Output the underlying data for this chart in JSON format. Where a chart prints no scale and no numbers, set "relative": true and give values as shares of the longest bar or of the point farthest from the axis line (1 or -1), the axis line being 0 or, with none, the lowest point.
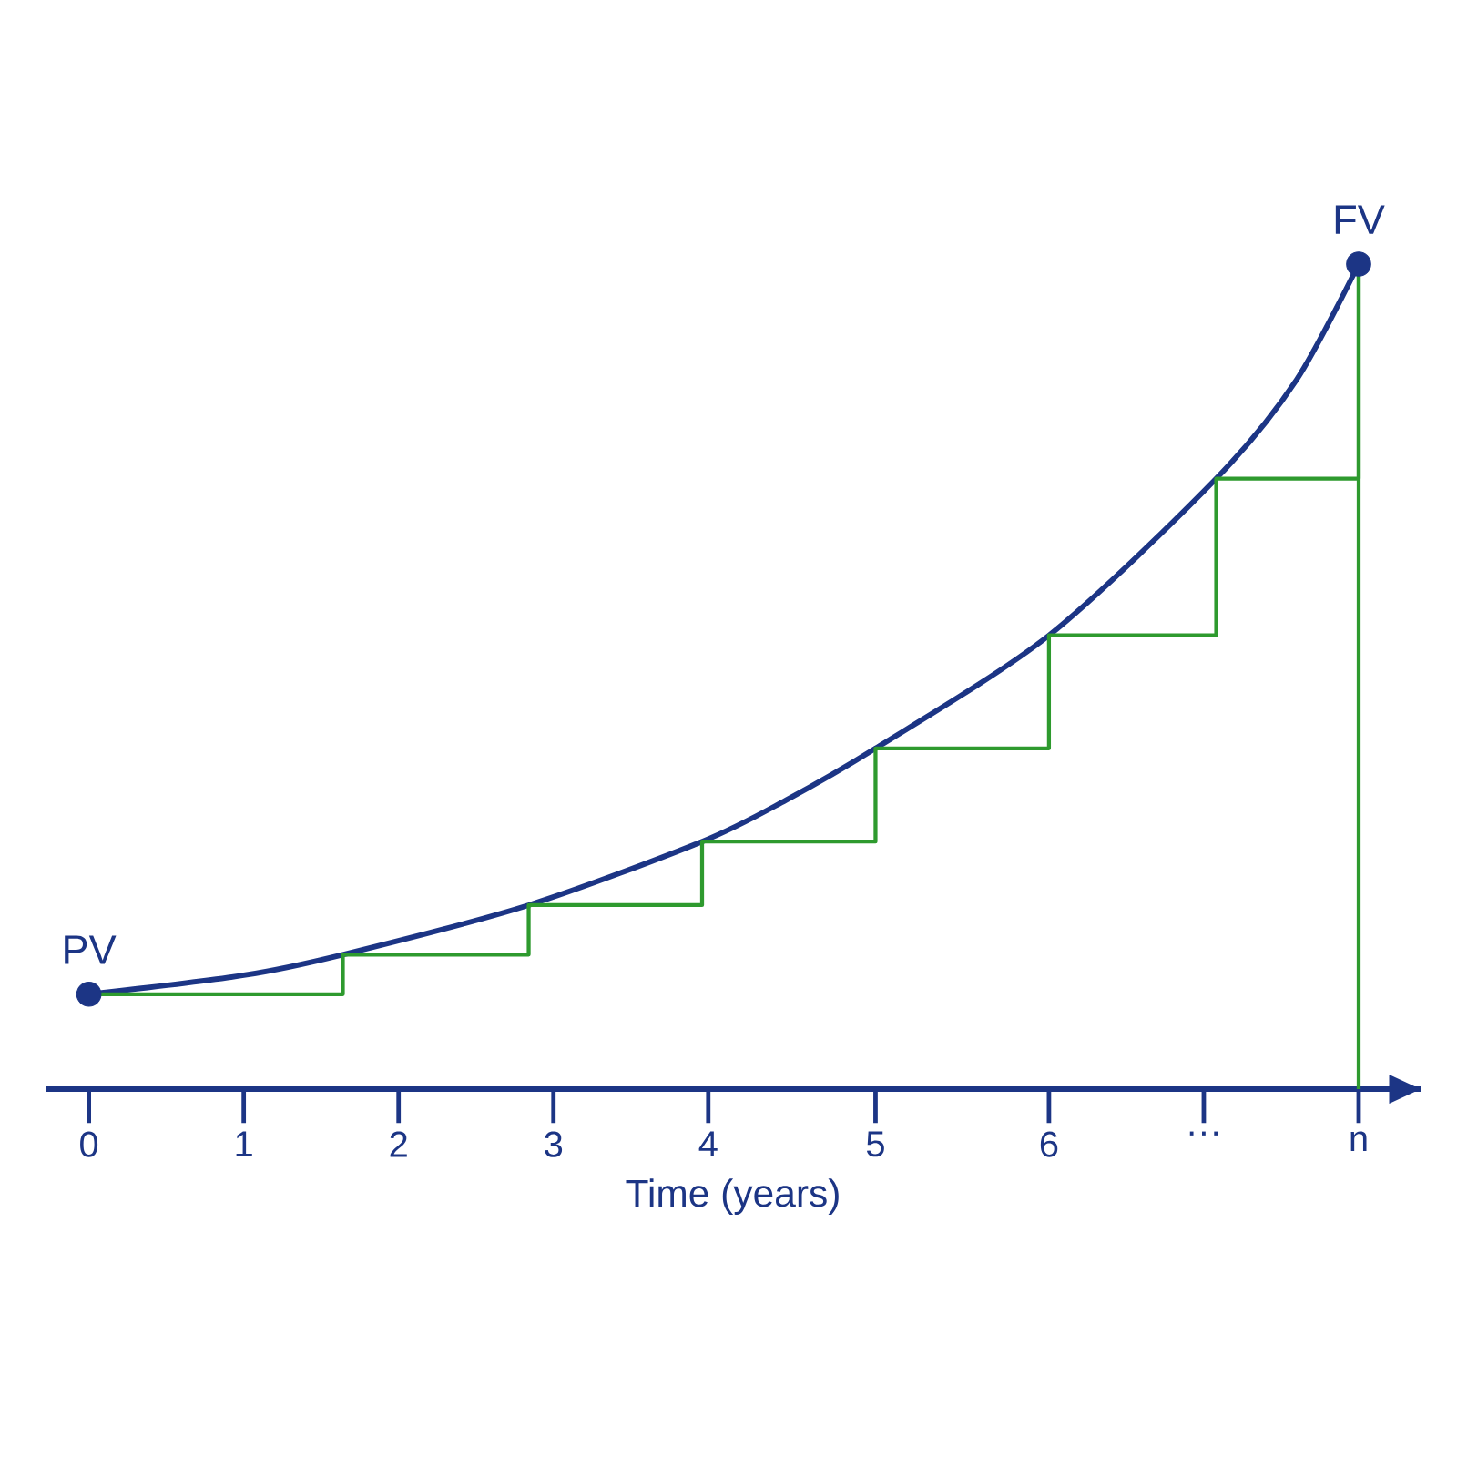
{
  "chart_data": {
    "type": "line",
    "relative": true,
    "xlabel": "Time (years)",
    "xlim": [
      -0.28,
      8.6
    ],
    "xticks": [
      0,
      1,
      2,
      3,
      4,
      {
        "value": 5.08,
        "label": "5"
      },
      {
        "value": 6.2,
        "label": "6"
      },
      {
        "value": 7.2,
        "label": "···"
      },
      {
        "value": 8.2,
        "label": "n"
      }
    ],
    "tick_labels": "x",
    "series": [
      {
        "color": "#1c3585",
        "x": [
          0,
          1,
          1.64,
          2.84,
          3.96,
          4.5,
          5.08,
          6.2,
          7.28,
          7.8,
          8.2
        ],
        "values": [
          0.115,
          0.138,
          0.163,
          0.223,
          0.3,
          0.35,
          0.413,
          0.55,
          0.74,
          0.86,
          1.0
        ]
      },
      {
        "type": "step",
        "color": "#2e9a2e",
        "x": [
          0,
          1.64,
          2.84,
          3.96,
          5.08,
          6.2,
          7.28,
          8.2
        ],
        "values": [
          0.115,
          0.163,
          0.223,
          0.3,
          0.413,
          0.55,
          0.74,
          1.0
        ]
      },
      {
        "type": "scatter",
        "color": "#1c3585",
        "marker": "circle",
        "x": [
          0,
          8.2
        ],
        "values": [
          0.115,
          1.0
        ]
      }
    ],
    "ref_lines": [
      {
        "axis": "x",
        "value": 8.2,
        "color": "#2e9a2e"
      }
    ],
    "annotations": [
      {
        "text": "PV",
        "x": 0,
        "y": 0.115
      },
      {
        "text": "FV",
        "x": 8.2,
        "y": 1.0
      }
    ]
  }
}
